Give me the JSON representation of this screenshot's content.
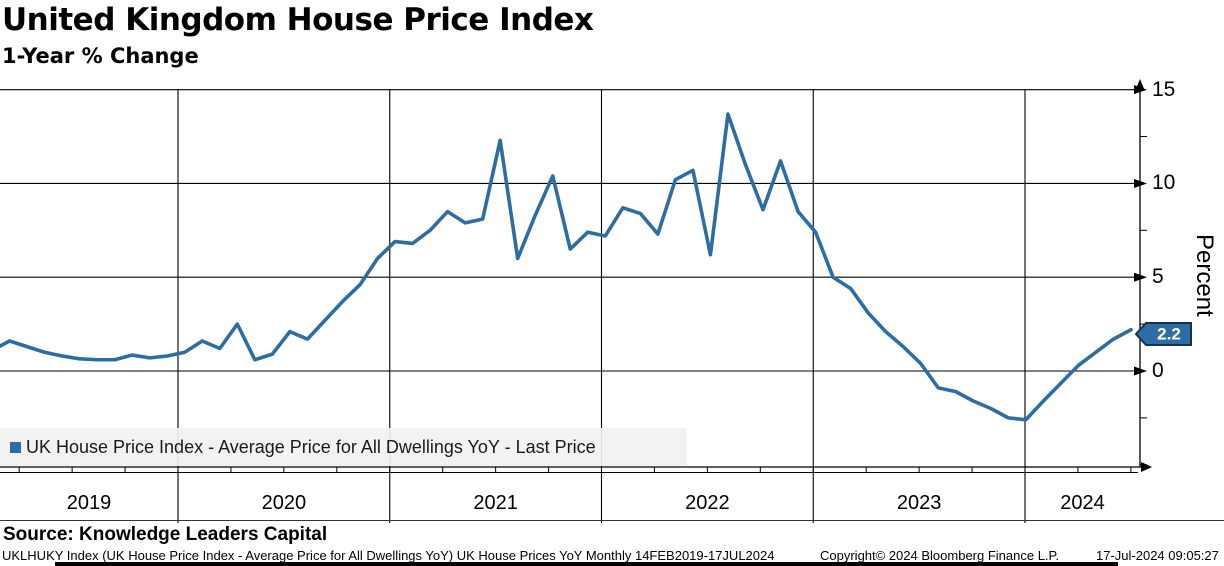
{
  "header": {
    "title": "United Kingdom House Price Index",
    "subtitle": "1-Year % Change"
  },
  "legend": {
    "label": "UK House Price Index - Average Price for All Dwellings YoY - Last Price"
  },
  "yaxis": {
    "title": "Percent",
    "last_tag": "2.2",
    "major_ticks": [
      15,
      10,
      5,
      0
    ],
    "minor_ticks": [
      12.5,
      7.5,
      2.5,
      -2.5,
      -5
    ]
  },
  "xaxis": {
    "years": [
      "2019",
      "2020",
      "2021",
      "2022",
      "2023",
      "2024"
    ]
  },
  "source": {
    "label": "Source: Knowledge Leaders Capital"
  },
  "footer": {
    "instrument": "UKLHUKY Index (UK House Price Index - Average Price for All Dwellings YoY) UK House Prices YoY  Monthly 14FEB2019-17JUL2024",
    "copyright": "Copyright© 2024 Bloomberg Finance L.P.",
    "timestamp": "17-Jul-2024 09:05:27"
  },
  "colors": {
    "line": "#2e6da4",
    "tag_fill": "#2e6da4",
    "tag_border": "#16324f",
    "grid": "#000000",
    "legend_bg": "#f1f1ef"
  },
  "chart_data": {
    "type": "line",
    "title": "United Kingdom House Price Index",
    "subtitle": "1-Year % Change",
    "xlabel": "",
    "ylabel": "Percent",
    "ylim": [
      -5.1,
      15
    ],
    "grid": true,
    "legend_position": "bottom-left",
    "x_gridline_years": [
      "2020",
      "2021",
      "2022",
      "2023",
      "2024"
    ],
    "last_price": 2.2,
    "x": [
      "2019-02",
      "2019-03",
      "2019-04",
      "2019-05",
      "2019-06",
      "2019-07",
      "2019-08",
      "2019-09",
      "2019-10",
      "2019-11",
      "2019-12",
      "2020-01",
      "2020-02",
      "2020-03",
      "2020-04",
      "2020-05",
      "2020-06",
      "2020-07",
      "2020-08",
      "2020-09",
      "2020-10",
      "2020-11",
      "2020-12",
      "2021-01",
      "2021-02",
      "2021-03",
      "2021-04",
      "2021-05",
      "2021-06",
      "2021-07",
      "2021-08",
      "2021-09",
      "2021-10",
      "2021-11",
      "2021-12",
      "2022-01",
      "2022-02",
      "2022-03",
      "2022-04",
      "2022-05",
      "2022-06",
      "2022-07",
      "2022-08",
      "2022-09",
      "2022-10",
      "2022-11",
      "2022-12",
      "2023-01",
      "2023-02",
      "2023-03",
      "2023-04",
      "2023-05",
      "2023-06",
      "2023-07",
      "2023-08",
      "2023-09",
      "2023-10",
      "2023-11",
      "2023-12",
      "2024-01",
      "2024-02",
      "2024-03",
      "2024-04",
      "2024-05",
      "2024-06",
      "2024-07"
    ],
    "series": [
      {
        "name": "UK House Price Index - Average Price for All Dwellings YoY - Last Price",
        "values": [
          1.1,
          1.6,
          1.3,
          1.0,
          0.8,
          0.65,
          0.6,
          0.6,
          0.85,
          0.7,
          0.8,
          1.0,
          1.6,
          1.2,
          2.5,
          0.6,
          0.9,
          2.1,
          1.7,
          2.7,
          3.7,
          4.6,
          6.0,
          6.9,
          6.8,
          7.5,
          8.5,
          7.9,
          8.1,
          12.3,
          6.0,
          8.3,
          10.4,
          6.5,
          7.4,
          7.2,
          8.7,
          8.4,
          7.3,
          10.2,
          10.7,
          6.2,
          13.7,
          11.0,
          8.6,
          11.2,
          8.5,
          7.4,
          5.0,
          4.4,
          3.1,
          2.1,
          1.3,
          0.4,
          -0.9,
          -1.1,
          -1.6,
          -2.0,
          -2.5,
          -2.6,
          -1.6,
          -0.65,
          0.3,
          1.0,
          1.7,
          2.2
        ]
      }
    ]
  }
}
